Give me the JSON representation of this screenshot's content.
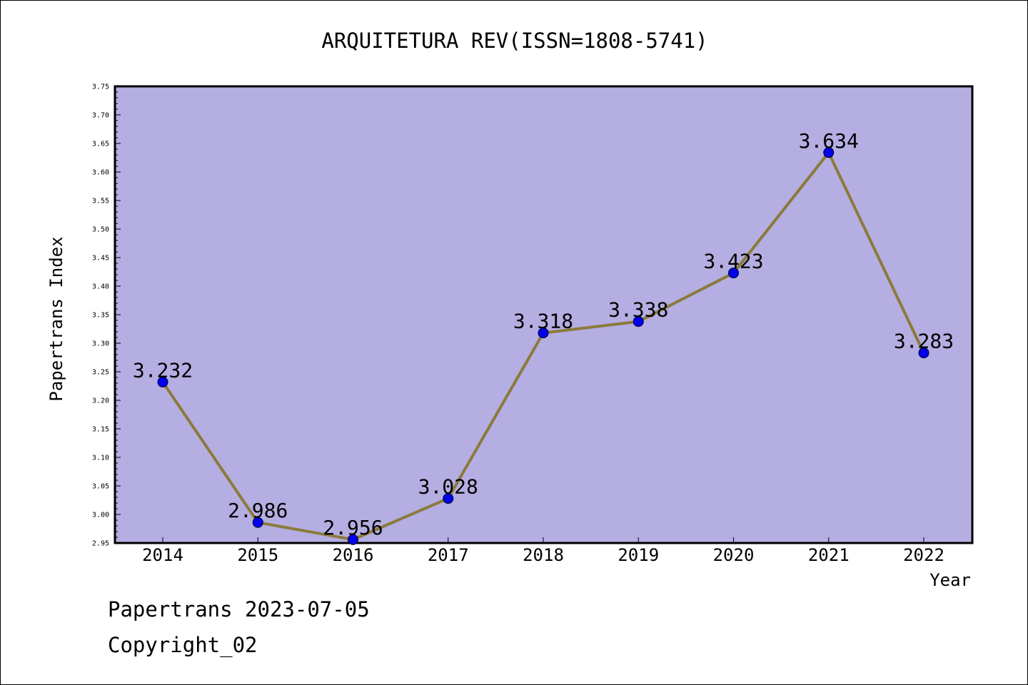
{
  "footer": {
    "line1": "Papertrans 2023-07-05",
    "line2": "Copyright_02"
  },
  "chart_data": {
    "type": "line",
    "title": "ARQUITETURA REV(ISSN=1808-5741)",
    "xlabel": "Year",
    "ylabel": "Papertrans Index",
    "categories": [
      "2014",
      "2015",
      "2016",
      "2017",
      "2018",
      "2019",
      "2020",
      "2021",
      "2022"
    ],
    "series": [
      {
        "values": [
          3.232,
          2.986,
          2.956,
          3.028,
          3.318,
          3.338,
          3.423,
          3.634,
          3.283
        ],
        "data_labels": [
          "3.232",
          "2.986",
          "2.956",
          "3.028",
          "3.318",
          "3.338",
          "3.423",
          "3.634",
          "3.283"
        ]
      }
    ],
    "ylim": [
      2.95,
      3.75
    ],
    "y_ticks": [
      "2.95",
      "3.00",
      "3.05",
      "3.10",
      "3.15",
      "3.20",
      "3.25",
      "3.30",
      "3.35",
      "3.40",
      "3.45",
      "3.50",
      "3.55",
      "3.60",
      "3.65",
      "3.70",
      "3.75"
    ],
    "grid": false,
    "colors": {
      "plot_background": "#b5aee2",
      "line": "#8b7a3a",
      "marker": "#0000ee"
    }
  }
}
